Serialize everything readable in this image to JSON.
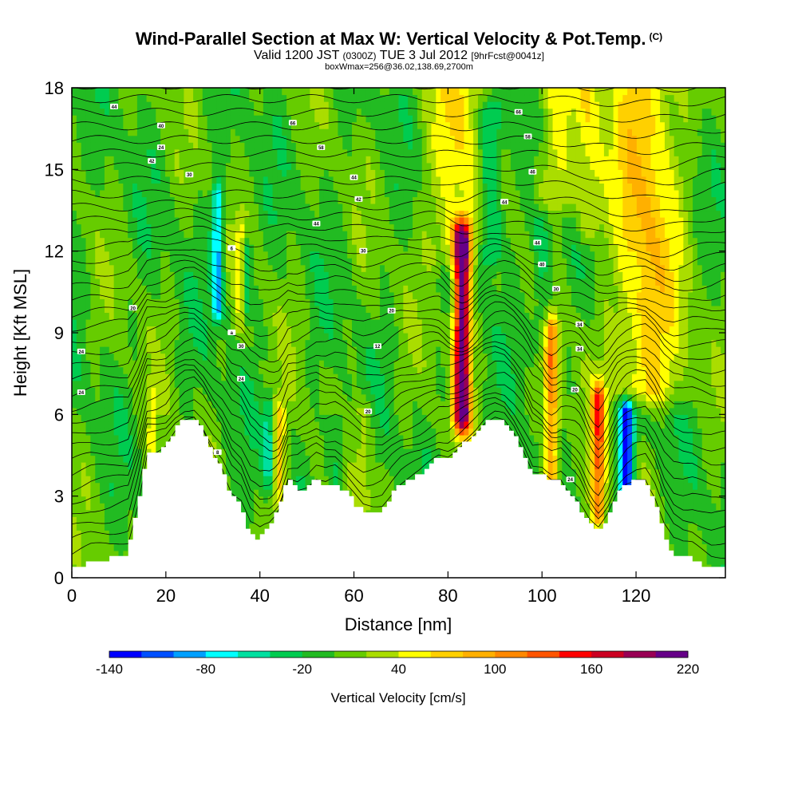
{
  "header": {
    "title_main": "Wind-Parallel Section at Max W: Vertical Velocity & Pot.Temp.",
    "title_copyright": "(C)",
    "valid_prefix": "Valid 1200 JST",
    "valid_utc": "(0300Z)",
    "valid_date": "TUE 3 Jul 2012",
    "forecast_tag": "[9hrFcst@0041z]",
    "subtitle": "boxWmax=256@36.02,138.69,2700m"
  },
  "chart_data": {
    "type": "heatmap",
    "xlabel": "Distance [nm]",
    "ylabel": "Height [Kft MSL]",
    "xlim": [
      0,
      139
    ],
    "ylim": [
      0,
      18
    ],
    "x_ticks": [
      0,
      20,
      40,
      60,
      80,
      100,
      120
    ],
    "y_ticks": [
      0,
      3,
      6,
      9,
      12,
      15,
      18
    ],
    "colorbar": {
      "label": "Vertical Velocity [cm/s]",
      "min": -140,
      "max": 220,
      "step": 20,
      "tick_labels": [
        "-140",
        "-80",
        "-20",
        "40",
        "100",
        "160",
        "220"
      ],
      "colors": [
        "#0000ff",
        "#0050ff",
        "#00a0ff",
        "#00ffff",
        "#00e0a0",
        "#00cc50",
        "#22bb22",
        "#66cc00",
        "#aadd00",
        "#ffff00",
        "#ffd000",
        "#ffb000",
        "#ff8800",
        "#ff5500",
        "#ff0000",
        "#cc0022",
        "#990055",
        "#660088"
      ]
    },
    "background_w": 0,
    "updrafts": [
      {
        "x": 83,
        "ybot": 6,
        "ytop": 12.5,
        "w": 1.8,
        "peak": 220
      },
      {
        "x": 82,
        "ybot": 12,
        "ytop": 18,
        "w": 6,
        "peak": 55
      },
      {
        "x": 102,
        "ybot": 3.5,
        "ytop": 9,
        "w": 1.6,
        "peak": 110
      },
      {
        "x": 112,
        "ybot": 2.5,
        "ytop": 6.5,
        "w": 1.5,
        "peak": 120
      },
      {
        "x": 122,
        "ybot": 7,
        "ytop": 18,
        "w": 7,
        "peak": 75
      },
      {
        "x": 103,
        "ybot": 14,
        "ytop": 18,
        "w": 4,
        "peak": 45
      },
      {
        "x": 44,
        "ybot": 3,
        "ytop": 6,
        "w": 1.5,
        "peak": 70
      },
      {
        "x": 36,
        "ybot": 9.5,
        "ytop": 12.5,
        "w": 1.2,
        "peak": 45
      },
      {
        "x": 17,
        "ybot": 4,
        "ytop": 6.5,
        "w": 1,
        "peak": 40
      },
      {
        "x": 62,
        "ybot": 3,
        "ytop": 6,
        "w": 2,
        "peak": 35
      },
      {
        "x": 110,
        "ybot": 13,
        "ytop": 18,
        "w": 3,
        "peak": 45
      }
    ],
    "downdrafts": [
      {
        "x": 118,
        "ybot": 3,
        "ytop": 6,
        "w": 1.6,
        "peak": -140
      },
      {
        "x": 89,
        "ybot": 12,
        "ytop": 17,
        "w": 2.5,
        "peak": -70
      },
      {
        "x": 31,
        "ybot": 10,
        "ytop": 14,
        "w": 1.2,
        "peak": -90
      },
      {
        "x": 37,
        "ybot": 10,
        "ytop": 12,
        "w": 1,
        "peak": -60
      },
      {
        "x": 42,
        "ybot": 4,
        "ytop": 6,
        "w": 1.2,
        "peak": -60
      },
      {
        "x": 56,
        "ybot": 3,
        "ytop": 5.5,
        "w": 2,
        "peak": -40
      },
      {
        "x": 100,
        "ybot": 9,
        "ytop": 13,
        "w": 2,
        "peak": -40
      }
    ],
    "terrain": [
      {
        "x": 0,
        "h": 0.3
      },
      {
        "x": 4,
        "h": 0.6
      },
      {
        "x": 8,
        "h": 0.7
      },
      {
        "x": 12,
        "h": 0.9
      },
      {
        "x": 14,
        "h": 2.5
      },
      {
        "x": 16,
        "h": 4.5
      },
      {
        "x": 18,
        "h": 4.6
      },
      {
        "x": 20,
        "h": 4.8
      },
      {
        "x": 22,
        "h": 5.4
      },
      {
        "x": 24,
        "h": 5.8
      },
      {
        "x": 26,
        "h": 5.9
      },
      {
        "x": 28,
        "h": 5.4
      },
      {
        "x": 30,
        "h": 4.6
      },
      {
        "x": 32,
        "h": 4.0
      },
      {
        "x": 34,
        "h": 3.0
      },
      {
        "x": 36,
        "h": 2.6
      },
      {
        "x": 38,
        "h": 1.6
      },
      {
        "x": 40,
        "h": 1.4
      },
      {
        "x": 42,
        "h": 1.8
      },
      {
        "x": 44,
        "h": 2.5
      },
      {
        "x": 46,
        "h": 3.6
      },
      {
        "x": 48,
        "h": 3.2
      },
      {
        "x": 50,
        "h": 3.3
      },
      {
        "x": 52,
        "h": 3.6
      },
      {
        "x": 54,
        "h": 3.4
      },
      {
        "x": 56,
        "h": 3.5
      },
      {
        "x": 58,
        "h": 3.2
      },
      {
        "x": 60,
        "h": 2.8
      },
      {
        "x": 62,
        "h": 2.4
      },
      {
        "x": 64,
        "h": 2.4
      },
      {
        "x": 66,
        "h": 2.5
      },
      {
        "x": 68,
        "h": 3.0
      },
      {
        "x": 70,
        "h": 3.4
      },
      {
        "x": 72,
        "h": 3.6
      },
      {
        "x": 74,
        "h": 3.8
      },
      {
        "x": 76,
        "h": 4.1
      },
      {
        "x": 78,
        "h": 4.4
      },
      {
        "x": 80,
        "h": 4.4
      },
      {
        "x": 82,
        "h": 4.7
      },
      {
        "x": 84,
        "h": 5.0
      },
      {
        "x": 86,
        "h": 5.3
      },
      {
        "x": 88,
        "h": 5.7
      },
      {
        "x": 90,
        "h": 5.9
      },
      {
        "x": 92,
        "h": 5.8
      },
      {
        "x": 94,
        "h": 5.3
      },
      {
        "x": 96,
        "h": 4.6
      },
      {
        "x": 98,
        "h": 3.8
      },
      {
        "x": 100,
        "h": 3.9
      },
      {
        "x": 102,
        "h": 3.6
      },
      {
        "x": 104,
        "h": 3.6
      },
      {
        "x": 106,
        "h": 3.0
      },
      {
        "x": 108,
        "h": 2.6
      },
      {
        "x": 110,
        "h": 2.0
      },
      {
        "x": 112,
        "h": 1.7
      },
      {
        "x": 114,
        "h": 2.2
      },
      {
        "x": 116,
        "h": 3.0
      },
      {
        "x": 118,
        "h": 3.4
      },
      {
        "x": 120,
        "h": 3.6
      },
      {
        "x": 122,
        "h": 3.6
      },
      {
        "x": 124,
        "h": 2.8
      },
      {
        "x": 126,
        "h": 1.6
      },
      {
        "x": 128,
        "h": 0.9
      },
      {
        "x": 130,
        "h": 0.7
      },
      {
        "x": 132,
        "h": 0.7
      },
      {
        "x": 134,
        "h": 0.5
      },
      {
        "x": 136,
        "h": 0.3
      },
      {
        "x": 139,
        "h": 0.3
      }
    ],
    "contour_labels": [
      {
        "x": 9,
        "y": 17.3,
        "text": "44"
      },
      {
        "x": 19,
        "y": 16.6,
        "text": "40"
      },
      {
        "x": 19,
        "y": 15.8,
        "text": "24"
      },
      {
        "x": 17,
        "y": 15.3,
        "text": "42"
      },
      {
        "x": 25,
        "y": 14.8,
        "text": "30"
      },
      {
        "x": 47,
        "y": 16.7,
        "text": "66"
      },
      {
        "x": 53,
        "y": 15.8,
        "text": "58"
      },
      {
        "x": 60,
        "y": 14.7,
        "text": "44"
      },
      {
        "x": 61,
        "y": 13.9,
        "text": "42"
      },
      {
        "x": 52,
        "y": 13.0,
        "text": "44"
      },
      {
        "x": 62,
        "y": 12.0,
        "text": "30"
      },
      {
        "x": 68,
        "y": 9.8,
        "text": "20"
      },
      {
        "x": 65,
        "y": 8.5,
        "text": "12"
      },
      {
        "x": 63,
        "y": 6.1,
        "text": "20"
      },
      {
        "x": 36,
        "y": 8.5,
        "text": "30"
      },
      {
        "x": 36,
        "y": 7.3,
        "text": "24"
      },
      {
        "x": 13,
        "y": 9.9,
        "text": "20"
      },
      {
        "x": 2,
        "y": 8.3,
        "text": "24"
      },
      {
        "x": 2,
        "y": 6.8,
        "text": "24"
      },
      {
        "x": 34,
        "y": 12.1,
        "text": "6"
      },
      {
        "x": 34,
        "y": 9.0,
        "text": "a"
      },
      {
        "x": 95,
        "y": 17.1,
        "text": "66"
      },
      {
        "x": 97,
        "y": 16.2,
        "text": "58"
      },
      {
        "x": 98,
        "y": 14.9,
        "text": "46"
      },
      {
        "x": 92,
        "y": 13.8,
        "text": "44"
      },
      {
        "x": 99,
        "y": 12.3,
        "text": "44"
      },
      {
        "x": 100,
        "y": 11.5,
        "text": "40"
      },
      {
        "x": 103,
        "y": 10.6,
        "text": "30"
      },
      {
        "x": 108,
        "y": 9.3,
        "text": "34"
      },
      {
        "x": 108,
        "y": 8.4,
        "text": "34"
      },
      {
        "x": 107,
        "y": 6.9,
        "text": "20"
      },
      {
        "x": 106,
        "y": 3.6,
        "text": "24"
      },
      {
        "x": 31,
        "y": 4.6,
        "text": "8"
      }
    ]
  }
}
